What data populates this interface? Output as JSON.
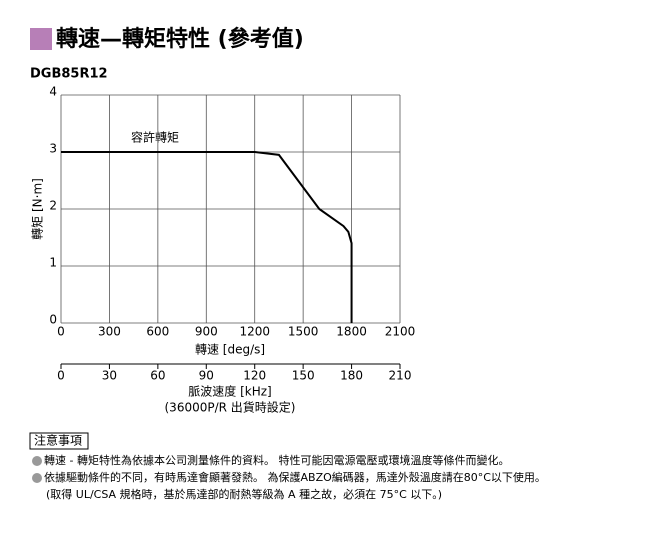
{
  "chart_data": {
    "type": "line",
    "title": "轉速—轉矩特性 (參考值)",
    "subtitle": "DGB85R12",
    "xlabel": "轉速 [deg/s]",
    "ylabel": "轉矩 [N·m]",
    "x2label": "脈波速度 [kHz]",
    "x2note": "(36000P/R 出貨時設定)",
    "annotation": "容許轉矩",
    "xlim": [
      0,
      2100
    ],
    "xticks": [
      0,
      300,
      600,
      900,
      1200,
      1500,
      1800,
      2100
    ],
    "ylim": [
      0,
      4
    ],
    "yticks": [
      0,
      1,
      2,
      3,
      4
    ],
    "x2lim": [
      0,
      210
    ],
    "x2ticks": [
      0,
      30,
      60,
      90,
      120,
      150,
      180,
      210
    ],
    "grid": true,
    "series": [
      {
        "name": "容許轉矩",
        "color": "#000000",
        "x": [
          0,
          1200,
          1350,
          1600,
          1750,
          1780,
          1800,
          1800
        ],
        "values": [
          3,
          3,
          2.95,
          2,
          1.7,
          1.6,
          1.4,
          0
        ]
      }
    ]
  },
  "notes": {
    "heading": "注意事項",
    "items": [
      [
        "轉速 - 轉矩特性為依據本公司測量條件的資料。 特性可能因電源電壓或環境溫度等條件而變化。"
      ],
      [
        "依據驅動條件的不同，有時馬達會顯著發熱。 為保護ABZO編碼器，馬達外殼溫度請在80°C以下使用。",
        "(取得 UL/CSA 規格時，基於馬達部的耐熱等級為 A 種之故，必須在 75°C 以下。)"
      ]
    ]
  }
}
